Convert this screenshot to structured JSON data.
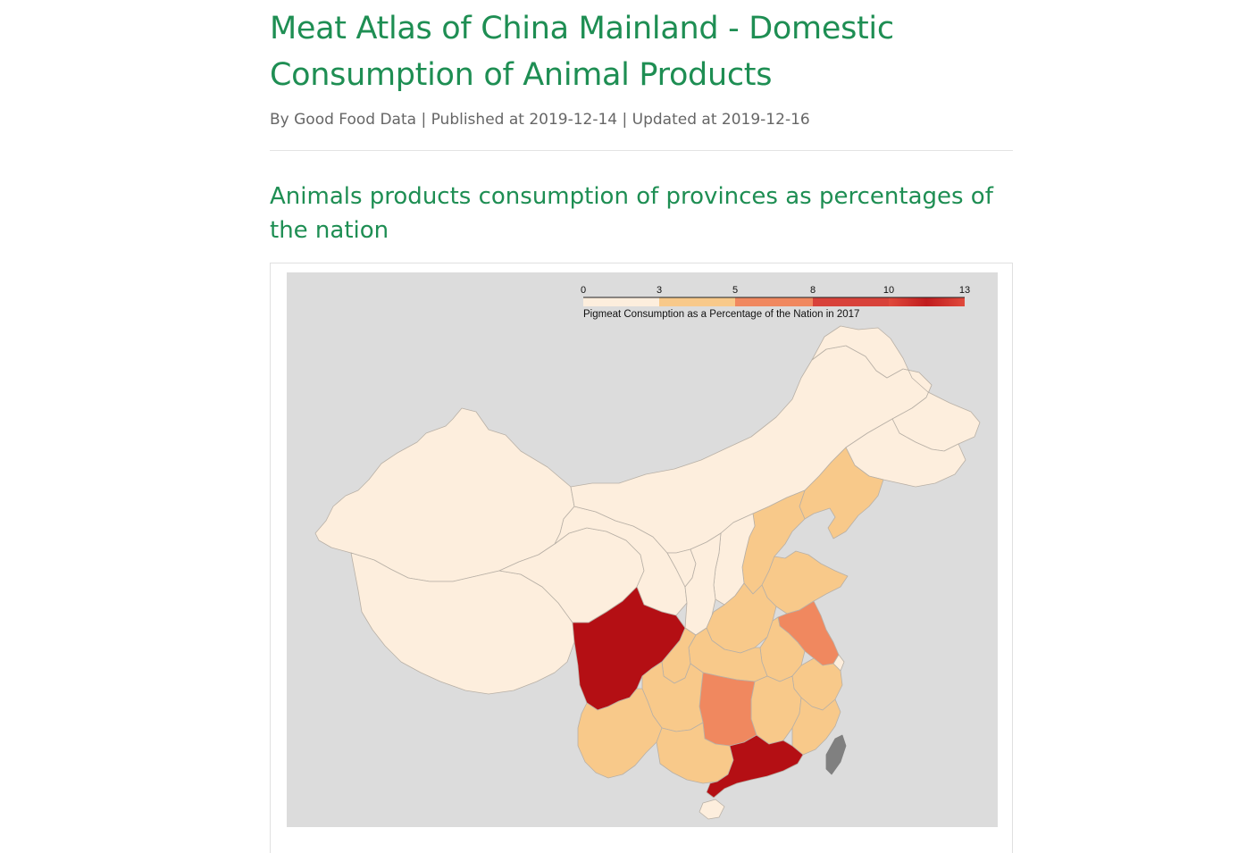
{
  "article": {
    "title": "Meat Atlas of China Mainland - Domestic Consumption of Animal Products",
    "meta": "By Good Food Data | Published at 2019-12-14 | Updated at 2019-12-16",
    "section_heading": "Animals products consumption of provinces as percentages of the nation"
  },
  "map": {
    "legend_title": "Pigmeat Consumption as a Percentage of the Nation in 2017",
    "legend_ticks": [
      "0",
      "3",
      "5",
      "8",
      "10",
      "13"
    ],
    "scale_colors": [
      "#fdeedd",
      "#f8c98a",
      "#f0885f",
      "#d8322f",
      "#b40f14"
    ],
    "background_color": "#dcdcdc",
    "no_data_color": "#808080",
    "regions": [
      {
        "name": "Sichuan",
        "class": "10-13"
      },
      {
        "name": "Guangdong",
        "class": "10-13"
      },
      {
        "name": "Hunan",
        "class": "5-8"
      },
      {
        "name": "Jiangsu",
        "class": "5-8"
      },
      {
        "name": "Taiwan",
        "class": "no data"
      }
    ]
  }
}
